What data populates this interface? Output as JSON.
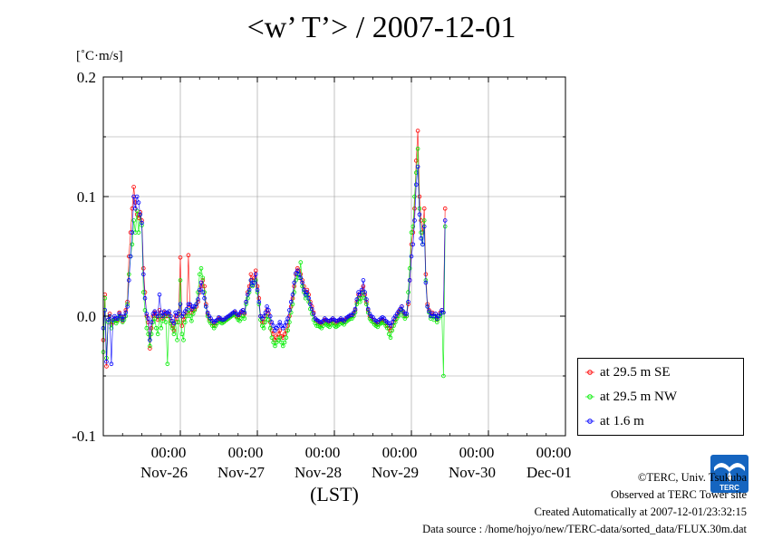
{
  "page": {
    "title": "<w’ T’> / 2007-12-01",
    "units_label": "[˚C·m/s]",
    "logo_text": "TERC",
    "credits": [
      "©TERC, Univ. Tsukuba",
      "Observed at TERC Tower site",
      "Created Automatically at 2007-12-01/23:32:15",
      "Data source : /home/hojyo/new/TERC-data/sorted_data/FLUX.30m.dat"
    ]
  },
  "chart_data": {
    "type": "line",
    "title": "<w’ T’> / 2007-12-01",
    "xlabel": "(LST)",
    "ylabel": "[˚C·m/s]",
    "x_start": "Nov-25 12:00",
    "interval_minutes": 30,
    "xlim": [
      0,
      6
    ],
    "ylim": [
      -0.1,
      0.2
    ],
    "y_ticks": [
      -0.1,
      0.0,
      0.1,
      0.2
    ],
    "y_tick_labels": [
      "-0.1",
      "0.0",
      "0.1",
      "0.2"
    ],
    "x_ticks": [
      {
        "x": 1,
        "time": "00:00",
        "date": "Nov-26"
      },
      {
        "x": 2,
        "time": "00:00",
        "date": "Nov-27"
      },
      {
        "x": 3,
        "time": "00:00",
        "date": "Nov-28"
      },
      {
        "x": 4,
        "time": "00:00",
        "date": "Nov-29"
      },
      {
        "x": 5,
        "time": "00:00",
        "date": "Nov-30"
      },
      {
        "x": 6,
        "time": "00:00",
        "date": "Dec-01"
      }
    ],
    "grid": true,
    "legend_position": "right",
    "series": [
      {
        "name": "at 29.5 m SE",
        "color": "#ff0000",
        "values": [
          -0.02,
          0.018,
          -0.042,
          -0.003,
          0.002,
          -0.007,
          -0.005,
          -0.002,
          -0.004,
          -0.003,
          0.003,
          -0.001,
          -0.004,
          -0.001,
          0.005,
          0.012,
          0.05,
          0.07,
          0.09,
          0.108,
          0.095,
          0.085,
          0.082,
          0.087,
          0.08,
          0.04,
          0.02,
          0.0,
          -0.005,
          -0.027,
          -0.01,
          0.0,
          0.003,
          0.0,
          -0.003,
          0.005,
          0.0,
          -0.002,
          0.003,
          0.0,
          0.0,
          0.002,
          -0.004,
          -0.008,
          -0.012,
          0.0,
          -0.005,
          0.002,
          0.049,
          -0.008,
          -0.003,
          0.0,
          0.003,
          0.051,
          0.009,
          0.003,
          0.005,
          0.006,
          0.008,
          0.012,
          0.02,
          0.025,
          0.03,
          0.025,
          0.01,
          0.002,
          -0.002,
          -0.004,
          -0.006,
          -0.008,
          -0.006,
          -0.004,
          -0.002,
          -0.003,
          -0.004,
          -0.005,
          -0.003,
          -0.002,
          -0.001,
          0.0,
          0.001,
          0.002,
          0.003,
          0.0,
          -0.001,
          0.001,
          0.003,
          0.005,
          0.002,
          0.012,
          0.02,
          0.025,
          0.035,
          0.03,
          0.032,
          0.038,
          0.025,
          0.015,
          0.0,
          -0.005,
          -0.005,
          0.0,
          0.005,
          0.002,
          -0.005,
          -0.012,
          -0.015,
          -0.02,
          -0.018,
          -0.015,
          -0.012,
          -0.017,
          -0.018,
          -0.015,
          -0.012,
          -0.008,
          0.0,
          0.008,
          0.015,
          0.025,
          0.035,
          0.04,
          0.038,
          0.035,
          0.03,
          0.025,
          0.02,
          0.022,
          0.018,
          0.012,
          0.008,
          0.003,
          -0.002,
          -0.004,
          -0.005,
          -0.006,
          -0.007,
          -0.005,
          -0.003,
          -0.004,
          -0.005,
          -0.006,
          -0.004,
          -0.003,
          -0.005,
          -0.006,
          -0.005,
          -0.004,
          -0.003,
          -0.004,
          -0.005,
          -0.003,
          -0.002,
          -0.001,
          0.0,
          0.0,
          0.002,
          0.005,
          0.012,
          0.018,
          0.015,
          0.02,
          0.025,
          0.018,
          0.012,
          0.005,
          0.0,
          -0.002,
          -0.003,
          -0.005,
          -0.006,
          -0.007,
          -0.005,
          -0.004,
          -0.003,
          -0.004,
          -0.006,
          -0.008,
          -0.01,
          -0.012,
          -0.008,
          -0.005,
          -0.003,
          0.0,
          0.003,
          0.005,
          0.008,
          0.003,
          0.0,
          0.0,
          0.01,
          0.03,
          0.06,
          0.07,
          0.09,
          0.13,
          0.155,
          0.1,
          0.08,
          0.07,
          0.09,
          0.035,
          0.01,
          0.005,
          0.0,
          0.003,
          0.0,
          0.002,
          -0.003,
          0.0,
          0.003,
          0.005,
          0.003,
          0.09
        ]
      },
      {
        "name": "at 29.5 m NW",
        "color": "#00ee00",
        "values": [
          -0.03,
          0.015,
          -0.035,
          -0.005,
          0.0,
          -0.01,
          -0.004,
          -0.003,
          -0.006,
          -0.004,
          0.0,
          -0.002,
          -0.005,
          -0.003,
          0.0,
          0.01,
          0.035,
          0.05,
          0.06,
          0.08,
          0.07,
          0.088,
          0.07,
          0.085,
          0.076,
          0.02,
          0.005,
          -0.01,
          -0.015,
          -0.025,
          -0.015,
          -0.005,
          -0.002,
          -0.01,
          -0.015,
          0.0,
          -0.01,
          -0.004,
          0.0,
          -0.005,
          -0.04,
          0.0,
          -0.006,
          -0.01,
          -0.015,
          -0.005,
          -0.02,
          -0.005,
          0.03,
          -0.015,
          -0.02,
          -0.005,
          0.0,
          0.005,
          0.0,
          -0.004,
          0.002,
          0.005,
          0.01,
          0.02,
          0.035,
          0.04,
          0.032,
          0.02,
          0.008,
          0.0,
          -0.004,
          -0.006,
          -0.008,
          -0.01,
          -0.008,
          -0.006,
          -0.004,
          -0.005,
          -0.006,
          -0.005,
          -0.004,
          -0.003,
          -0.002,
          -0.001,
          0.0,
          0.001,
          0.002,
          -0.001,
          -0.003,
          -0.004,
          -0.002,
          0.0,
          -0.002,
          0.01,
          0.015,
          0.02,
          0.03,
          0.025,
          0.028,
          0.03,
          0.02,
          0.01,
          -0.003,
          -0.008,
          -0.01,
          -0.005,
          0.0,
          -0.003,
          -0.01,
          -0.018,
          -0.022,
          -0.025,
          -0.022,
          -0.02,
          -0.018,
          -0.022,
          -0.025,
          -0.022,
          -0.018,
          -0.012,
          -0.005,
          0.003,
          0.01,
          0.02,
          0.03,
          0.035,
          0.032,
          0.045,
          0.025,
          0.02,
          0.015,
          0.018,
          0.012,
          0.006,
          0.002,
          -0.003,
          -0.006,
          -0.008,
          -0.008,
          -0.009,
          -0.01,
          -0.008,
          -0.006,
          -0.007,
          -0.008,
          -0.009,
          -0.007,
          -0.006,
          -0.008,
          -0.009,
          -0.008,
          -0.007,
          -0.005,
          -0.006,
          -0.007,
          -0.005,
          -0.004,
          -0.003,
          -0.002,
          -0.002,
          0.0,
          0.003,
          0.01,
          0.015,
          0.012,
          0.015,
          0.02,
          0.015,
          0.01,
          0.003,
          -0.002,
          -0.004,
          -0.005,
          -0.007,
          -0.008,
          -0.009,
          -0.007,
          -0.006,
          -0.005,
          -0.006,
          -0.008,
          -0.01,
          -0.015,
          -0.018,
          -0.012,
          -0.008,
          -0.005,
          -0.002,
          0.0,
          0.003,
          0.005,
          0.0,
          -0.002,
          0.0,
          0.02,
          0.04,
          0.07,
          0.075,
          0.1,
          0.12,
          0.14,
          0.09,
          0.07,
          0.06,
          0.08,
          0.03,
          0.008,
          0.003,
          -0.002,
          0.0,
          -0.003,
          0.0,
          -0.005,
          -0.002,
          0.0,
          0.003,
          -0.05,
          0.075
        ]
      },
      {
        "name": "at 1.6 m",
        "color": "#0000ff",
        "values": [
          -0.01,
          0.005,
          -0.038,
          -0.003,
          0.0,
          -0.04,
          -0.003,
          0.0,
          -0.002,
          -0.002,
          0.002,
          0.0,
          -0.003,
          0.0,
          0.003,
          0.008,
          0.03,
          0.05,
          0.07,
          0.1,
          0.09,
          0.1,
          0.095,
          0.085,
          0.078,
          0.035,
          0.015,
          0.002,
          -0.002,
          -0.02,
          -0.005,
          0.002,
          0.004,
          0.002,
          0.0,
          0.018,
          0.003,
          0.0,
          0.004,
          0.002,
          0.003,
          0.004,
          0.0,
          -0.004,
          -0.006,
          0.003,
          0.0,
          0.004,
          0.01,
          0.0,
          0.002,
          0.004,
          0.006,
          0.01,
          0.01,
          0.006,
          0.008,
          0.008,
          0.01,
          0.014,
          0.022,
          0.028,
          0.02,
          0.015,
          0.008,
          0.003,
          0.0,
          -0.002,
          -0.004,
          -0.005,
          -0.004,
          -0.003,
          -0.001,
          -0.002,
          -0.003,
          -0.003,
          -0.002,
          -0.001,
          0.0,
          0.001,
          0.002,
          0.003,
          0.004,
          0.002,
          0.001,
          0.002,
          0.004,
          0.005,
          0.003,
          0.012,
          0.018,
          0.022,
          0.03,
          0.026,
          0.028,
          0.035,
          0.022,
          0.012,
          0.0,
          -0.002,
          0.0,
          0.003,
          0.008,
          0.005,
          0.0,
          -0.005,
          -0.008,
          -0.012,
          -0.01,
          -0.008,
          -0.005,
          -0.008,
          -0.01,
          -0.008,
          -0.005,
          -0.002,
          0.005,
          0.012,
          0.018,
          0.028,
          0.036,
          0.038,
          0.035,
          0.032,
          0.028,
          0.022,
          0.018,
          0.02,
          0.015,
          0.01,
          0.006,
          0.002,
          -0.002,
          -0.003,
          -0.004,
          -0.005,
          -0.005,
          -0.004,
          -0.002,
          -0.003,
          -0.004,
          -0.004,
          -0.003,
          -0.002,
          -0.003,
          -0.004,
          -0.004,
          -0.003,
          -0.002,
          -0.003,
          -0.004,
          -0.002,
          -0.001,
          0.0,
          0.001,
          0.001,
          0.003,
          0.006,
          0.014,
          0.02,
          0.018,
          0.022,
          0.03,
          0.02,
          0.014,
          0.006,
          0.002,
          0.0,
          -0.001,
          -0.003,
          -0.004,
          -0.005,
          -0.003,
          -0.002,
          -0.001,
          -0.002,
          -0.004,
          -0.005,
          -0.006,
          -0.008,
          -0.005,
          -0.002,
          0.0,
          0.002,
          0.004,
          0.006,
          0.008,
          0.004,
          0.002,
          0.002,
          0.012,
          0.03,
          0.05,
          0.06,
          0.08,
          0.11,
          0.125,
          0.085,
          0.065,
          0.06,
          0.075,
          0.028,
          0.008,
          0.004,
          0.0,
          0.002,
          0.0,
          0.002,
          -0.002,
          0.0,
          0.002,
          0.005,
          0.003,
          0.08
        ]
      }
    ]
  }
}
